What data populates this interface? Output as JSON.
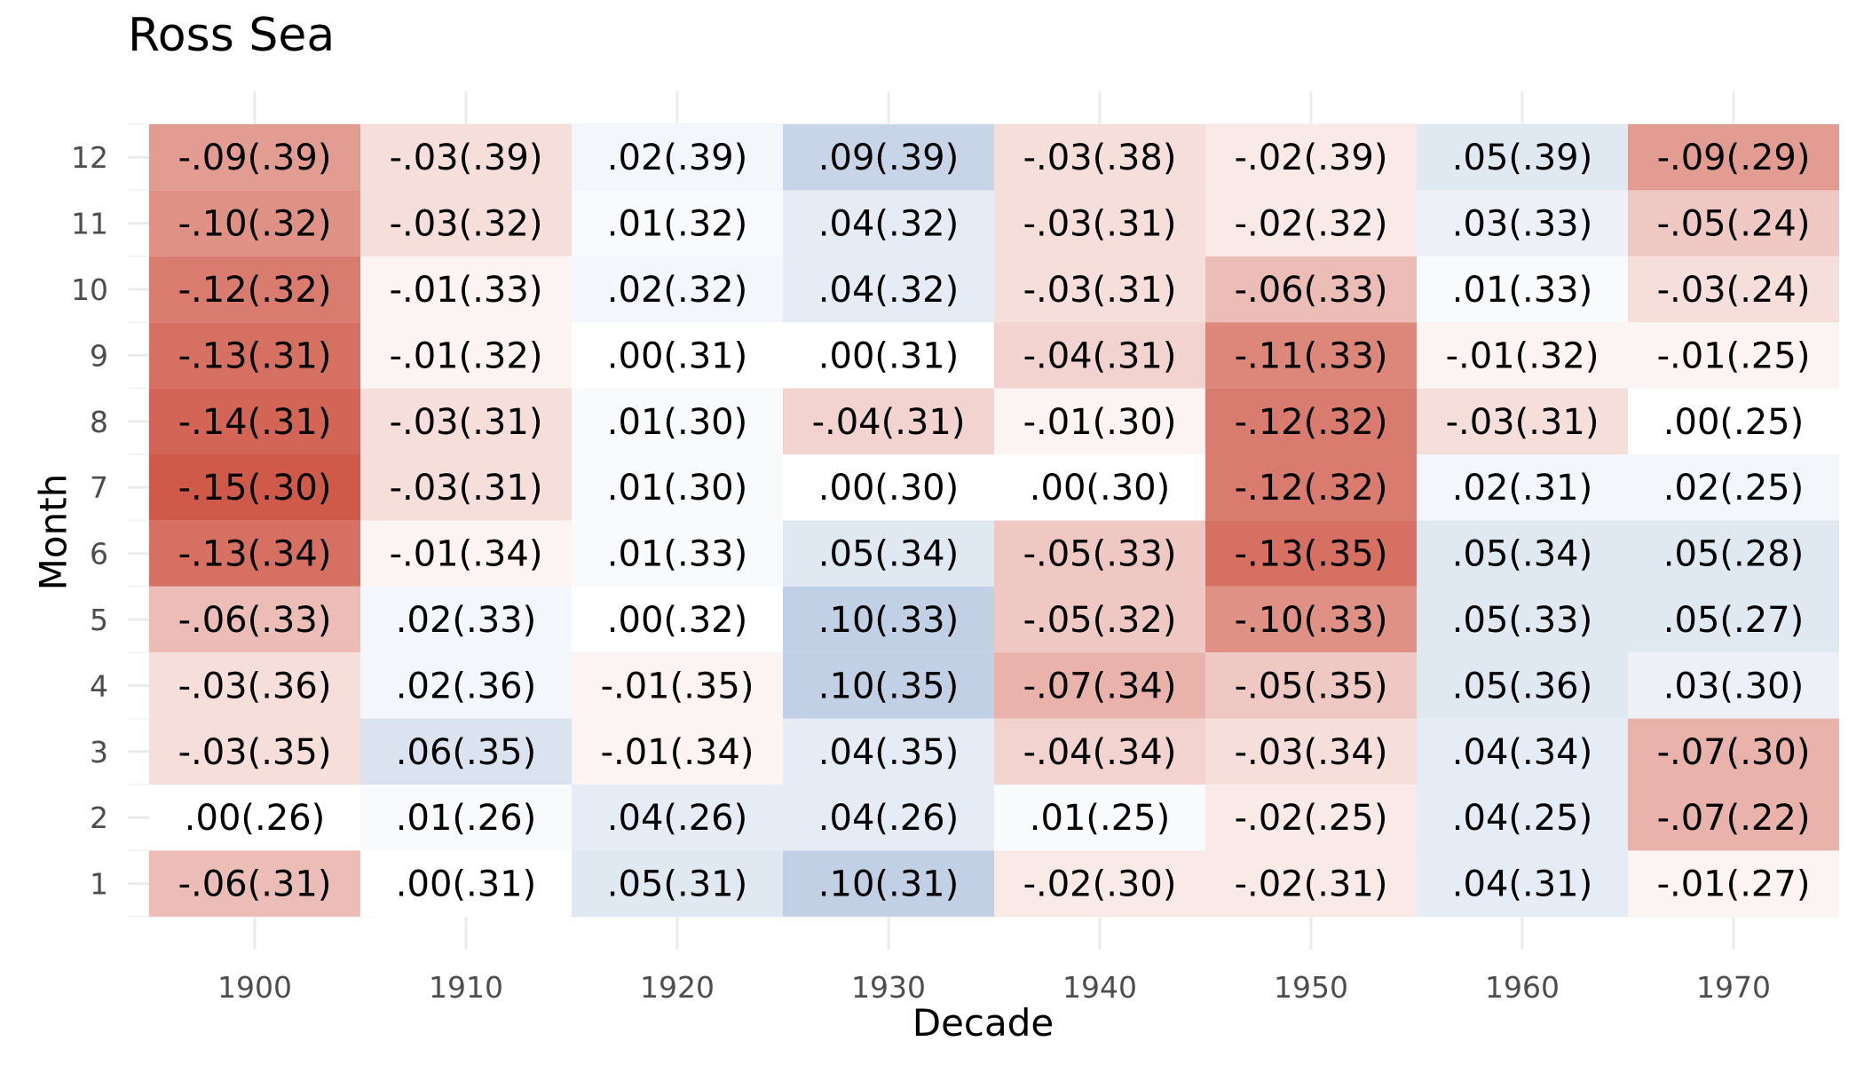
{
  "chart_data": {
    "type": "heatmap",
    "title": "Ross Sea",
    "xlabel": "Decade",
    "ylabel": "Month",
    "x": [
      1900,
      1910,
      1920,
      1930,
      1940,
      1950,
      1960,
      1970
    ],
    "y": [
      1,
      2,
      3,
      4,
      5,
      6,
      7,
      8,
      9,
      10,
      11,
      12
    ],
    "grid": true,
    "color_scale": {
      "negative": "#d05a4a",
      "zero": "#ffffff",
      "positive": "#a3b9d8",
      "limit": 0.15
    },
    "cells": [
      {
        "month": 12,
        "values": [
          -0.09,
          -0.03,
          0.02,
          0.09,
          -0.03,
          -0.02,
          0.05,
          -0.09
        ],
        "labels": [
          "-.09(.39)",
          "-.03(.39)",
          ".02(.39)",
          ".09(.39)",
          "-.03(.38)",
          "-.02(.39)",
          ".05(.39)",
          "-.09(.29)"
        ]
      },
      {
        "month": 11,
        "values": [
          -0.1,
          -0.03,
          0.01,
          0.04,
          -0.03,
          -0.02,
          0.03,
          -0.05
        ],
        "labels": [
          "-.10(.32)",
          "-.03(.32)",
          ".01(.32)",
          ".04(.32)",
          "-.03(.31)",
          "-.02(.32)",
          ".03(.33)",
          "-.05(.24)"
        ]
      },
      {
        "month": 10,
        "values": [
          -0.12,
          -0.01,
          0.02,
          0.04,
          -0.03,
          -0.06,
          0.01,
          -0.03
        ],
        "labels": [
          "-.12(.32)",
          "-.01(.33)",
          ".02(.32)",
          ".04(.32)",
          "-.03(.31)",
          "-.06(.33)",
          ".01(.33)",
          "-.03(.24)"
        ]
      },
      {
        "month": 9,
        "values": [
          -0.13,
          -0.01,
          0.0,
          0.0,
          -0.04,
          -0.11,
          -0.01,
          -0.01
        ],
        "labels": [
          "-.13(.31)",
          "-.01(.32)",
          ".00(.31)",
          ".00(.31)",
          "-.04(.31)",
          "-.11(.33)",
          "-.01(.32)",
          "-.01(.25)"
        ]
      },
      {
        "month": 8,
        "values": [
          -0.14,
          -0.03,
          0.01,
          -0.04,
          -0.01,
          -0.12,
          -0.03,
          0.0
        ],
        "labels": [
          "-.14(.31)",
          "-.03(.31)",
          ".01(.30)",
          "-.04(.31)",
          "-.01(.30)",
          "-.12(.32)",
          "-.03(.31)",
          ".00(.25)"
        ]
      },
      {
        "month": 7,
        "values": [
          -0.15,
          -0.03,
          0.01,
          0.0,
          0.0,
          -0.12,
          0.02,
          0.02
        ],
        "labels": [
          "-.15(.30)",
          "-.03(.31)",
          ".01(.30)",
          ".00(.30)",
          ".00(.30)",
          "-.12(.32)",
          ".02(.31)",
          ".02(.25)"
        ]
      },
      {
        "month": 6,
        "values": [
          -0.13,
          -0.01,
          0.01,
          0.05,
          -0.05,
          -0.13,
          0.05,
          0.05
        ],
        "labels": [
          "-.13(.34)",
          "-.01(.34)",
          ".01(.33)",
          ".05(.34)",
          "-.05(.33)",
          "-.13(.35)",
          ".05(.34)",
          ".05(.28)"
        ]
      },
      {
        "month": 5,
        "values": [
          -0.06,
          0.02,
          0.0,
          0.1,
          -0.05,
          -0.1,
          0.05,
          0.05
        ],
        "labels": [
          "-.06(.33)",
          ".02(.33)",
          ".00(.32)",
          ".10(.33)",
          "-.05(.32)",
          "-.10(.33)",
          ".05(.33)",
          ".05(.27)"
        ]
      },
      {
        "month": 4,
        "values": [
          -0.03,
          0.02,
          -0.01,
          0.1,
          -0.07,
          -0.05,
          0.05,
          0.03
        ],
        "labels": [
          "-.03(.36)",
          ".02(.36)",
          "-.01(.35)",
          ".10(.35)",
          "-.07(.34)",
          "-.05(.35)",
          ".05(.36)",
          ".03(.30)"
        ]
      },
      {
        "month": 3,
        "values": [
          -0.03,
          0.06,
          -0.01,
          0.04,
          -0.04,
          -0.03,
          0.04,
          -0.07
        ],
        "labels": [
          "-.03(.35)",
          ".06(.35)",
          "-.01(.34)",
          ".04(.35)",
          "-.04(.34)",
          "-.03(.34)",
          ".04(.34)",
          "-.07(.30)"
        ]
      },
      {
        "month": 2,
        "values": [
          0.0,
          0.01,
          0.04,
          0.04,
          0.01,
          -0.02,
          0.04,
          -0.07
        ],
        "labels": [
          ".00(.26)",
          ".01(.26)",
          ".04(.26)",
          ".04(.26)",
          ".01(.25)",
          "-.02(.25)",
          ".04(.25)",
          "-.07(.22)"
        ]
      },
      {
        "month": 1,
        "values": [
          -0.06,
          0.0,
          0.05,
          0.1,
          -0.02,
          -0.02,
          0.04,
          -0.01
        ],
        "labels": [
          "-.06(.31)",
          ".00(.31)",
          ".05(.31)",
          ".10(.31)",
          "-.02(.30)",
          "-.02(.31)",
          ".04(.31)",
          "-.01(.27)"
        ]
      }
    ]
  }
}
